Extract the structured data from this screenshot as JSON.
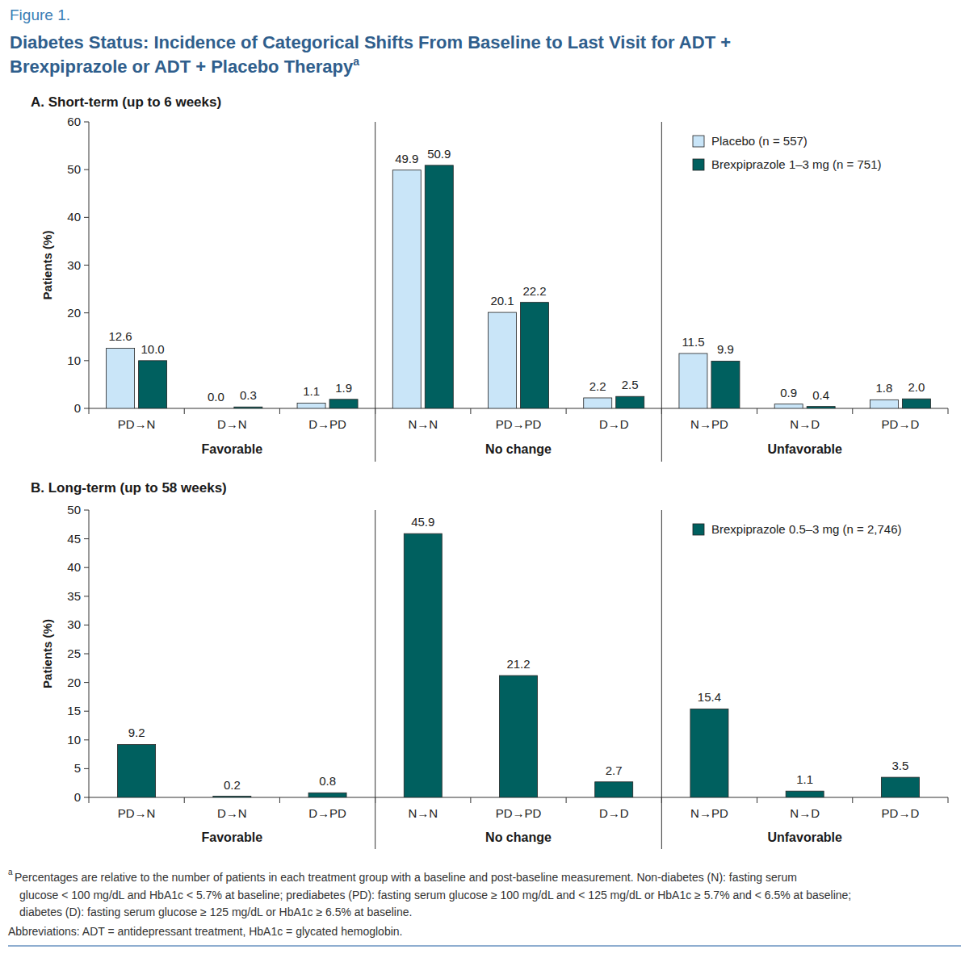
{
  "header": {
    "label": "Figure 1.",
    "title_lines": [
      "Diabetes Status: Incidence of Categorical Shifts From Baseline to Last Visit for ADT +",
      "Brexpiprazole or ADT + Placebo Therapy"
    ],
    "title_sup": "a"
  },
  "chart_data": [
    {
      "type": "bar",
      "title": "A. Short-term (up to 6 weeks)",
      "y_label": "Patients (%)",
      "categories": [
        "PD→N",
        "D→N",
        "D→PD",
        "N→N",
        "PD→PD",
        "D→D",
        "N→PD",
        "N→D",
        "PD→D"
      ],
      "category_groups": [
        "Favorable",
        "Favorable",
        "Favorable",
        "No change",
        "No change",
        "No change",
        "Unfavorable",
        "Unfavorable",
        "Unfavorable"
      ],
      "series": [
        {
          "name": "Placebo (n = 557)",
          "color": "#c9e5f8",
          "values": [
            12.6,
            0.0,
            1.1,
            49.9,
            20.1,
            2.2,
            11.5,
            0.9,
            1.8
          ],
          "value_labels": [
            "12.6",
            "0.0",
            "1.1",
            "49.9",
            "20.1",
            "2.2",
            "11.5",
            "0.9",
            "1.8"
          ]
        },
        {
          "name": "Brexpiprazole 1–3 mg (n = 751)",
          "color": "#00605f",
          "values": [
            10.0,
            0.3,
            1.9,
            50.9,
            22.2,
            2.5,
            9.9,
            0.4,
            2.0
          ],
          "value_labels": [
            "10.0",
            "0.3",
            "1.9",
            "50.9",
            "22.2",
            "2.5",
            "9.9",
            "0.4",
            "2.0"
          ]
        }
      ],
      "ylim": [
        0,
        60
      ],
      "yticks": [
        0,
        10,
        20,
        30,
        40,
        50,
        60
      ],
      "grid": false,
      "legend": "upper right",
      "data_labels": true
    },
    {
      "type": "bar",
      "title": "B. Long-term (up to 58 weeks)",
      "y_label": "Patients (%)",
      "categories": [
        "PD→N",
        "D→N",
        "D→PD",
        "N→N",
        "PD→PD",
        "D→D",
        "N→PD",
        "N→D",
        "PD→D"
      ],
      "category_groups": [
        "Favorable",
        "Favorable",
        "Favorable",
        "No change",
        "No change",
        "No change",
        "Unfavorable",
        "Unfavorable",
        "Unfavorable"
      ],
      "series": [
        {
          "name": "Brexpiprazole 0.5–3 mg (n = 2,746)",
          "color": "#00605f",
          "values": [
            9.2,
            0.2,
            0.8,
            45.9,
            21.2,
            2.7,
            15.4,
            1.1,
            3.5
          ],
          "value_labels": [
            "9.2",
            "0.2",
            "0.8",
            "45.9",
            "21.2",
            "2.7",
            "15.4",
            "1.1",
            "3.5"
          ]
        }
      ],
      "ylim": [
        0,
        50
      ],
      "yticks": [
        0,
        5,
        10,
        15,
        20,
        25,
        30,
        35,
        40,
        45,
        50
      ],
      "grid": false,
      "legend": "upper right",
      "data_labels": true
    }
  ],
  "footnote": {
    "marker": "a",
    "lines": [
      "Percentages are relative to the number of patients in each treatment group with a baseline and post-baseline measurement. Non-diabetes (N): fasting serum",
      "glucose < 100 mg/dL and HbA1c < 5.7% at baseline; prediabetes (PD): fasting serum glucose ≥ 100 mg/dL and < 125 mg/dL or HbA1c ≥ 5.7% and < 6.5% at baseline;",
      "diabetes (D): fasting serum glucose ≥ 125 mg/dL or HbA1c ≥ 6.5% at baseline."
    ],
    "abbreviations": "Abbreviations: ADT = antidepressant treatment, HbA1c = glycated hemoglobin."
  }
}
